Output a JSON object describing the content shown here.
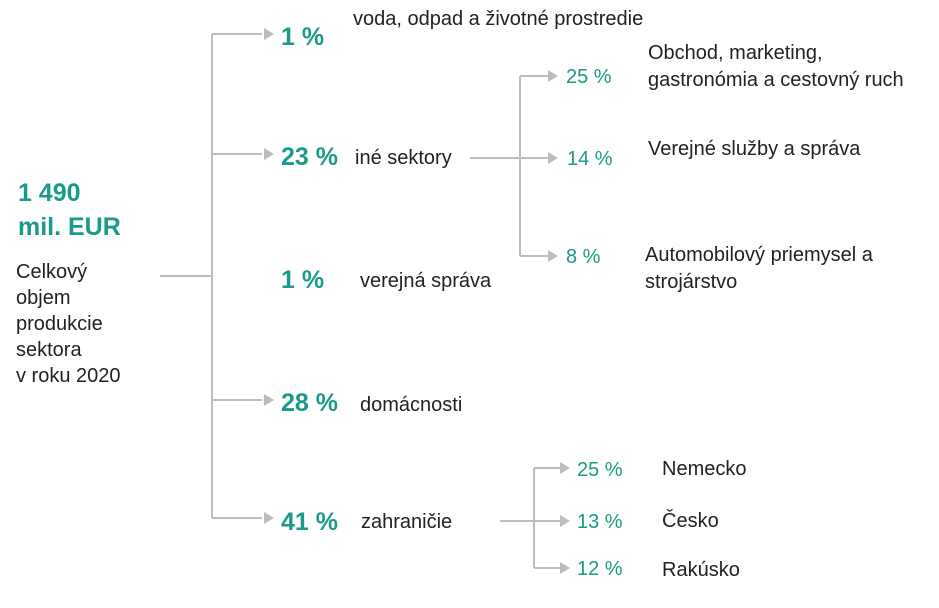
{
  "total": {
    "amount": "1 490",
    "unit": "mil. EUR",
    "description_lines": [
      "Celkový",
      "objem",
      "produkcie",
      "sektora",
      "v roku 2020"
    ]
  },
  "branches": [
    {
      "pct": "1 %",
      "label": "voda, odpad a životné prostredie"
    },
    {
      "pct": "23 %",
      "label": "iné sektory"
    },
    {
      "pct": "1 %",
      "label": "verejná správa"
    },
    {
      "pct": "28 %",
      "label": "domácnosti"
    },
    {
      "pct": "41 %",
      "label": "zahraničie"
    }
  ],
  "other_sectors": [
    {
      "pct": "25 %",
      "label_lines": [
        "Obchod, marketing,",
        "gastronómia a cestovný ruch"
      ]
    },
    {
      "pct": "14 %",
      "label_lines": [
        "Verejné služby a správa"
      ]
    },
    {
      "pct": "8 %",
      "label_lines": [
        "Automobilový priemysel a",
        "strojárstvo"
      ]
    }
  ],
  "abroad": [
    {
      "pct": "25 %",
      "label": "Nemecko"
    },
    {
      "pct": "13 %",
      "label": "Česko"
    },
    {
      "pct": "12 %",
      "label": "Rakúsko"
    }
  ],
  "colors": {
    "accent": "#1a9a8a",
    "connector": "#bdbdbd",
    "text": "#222222"
  }
}
